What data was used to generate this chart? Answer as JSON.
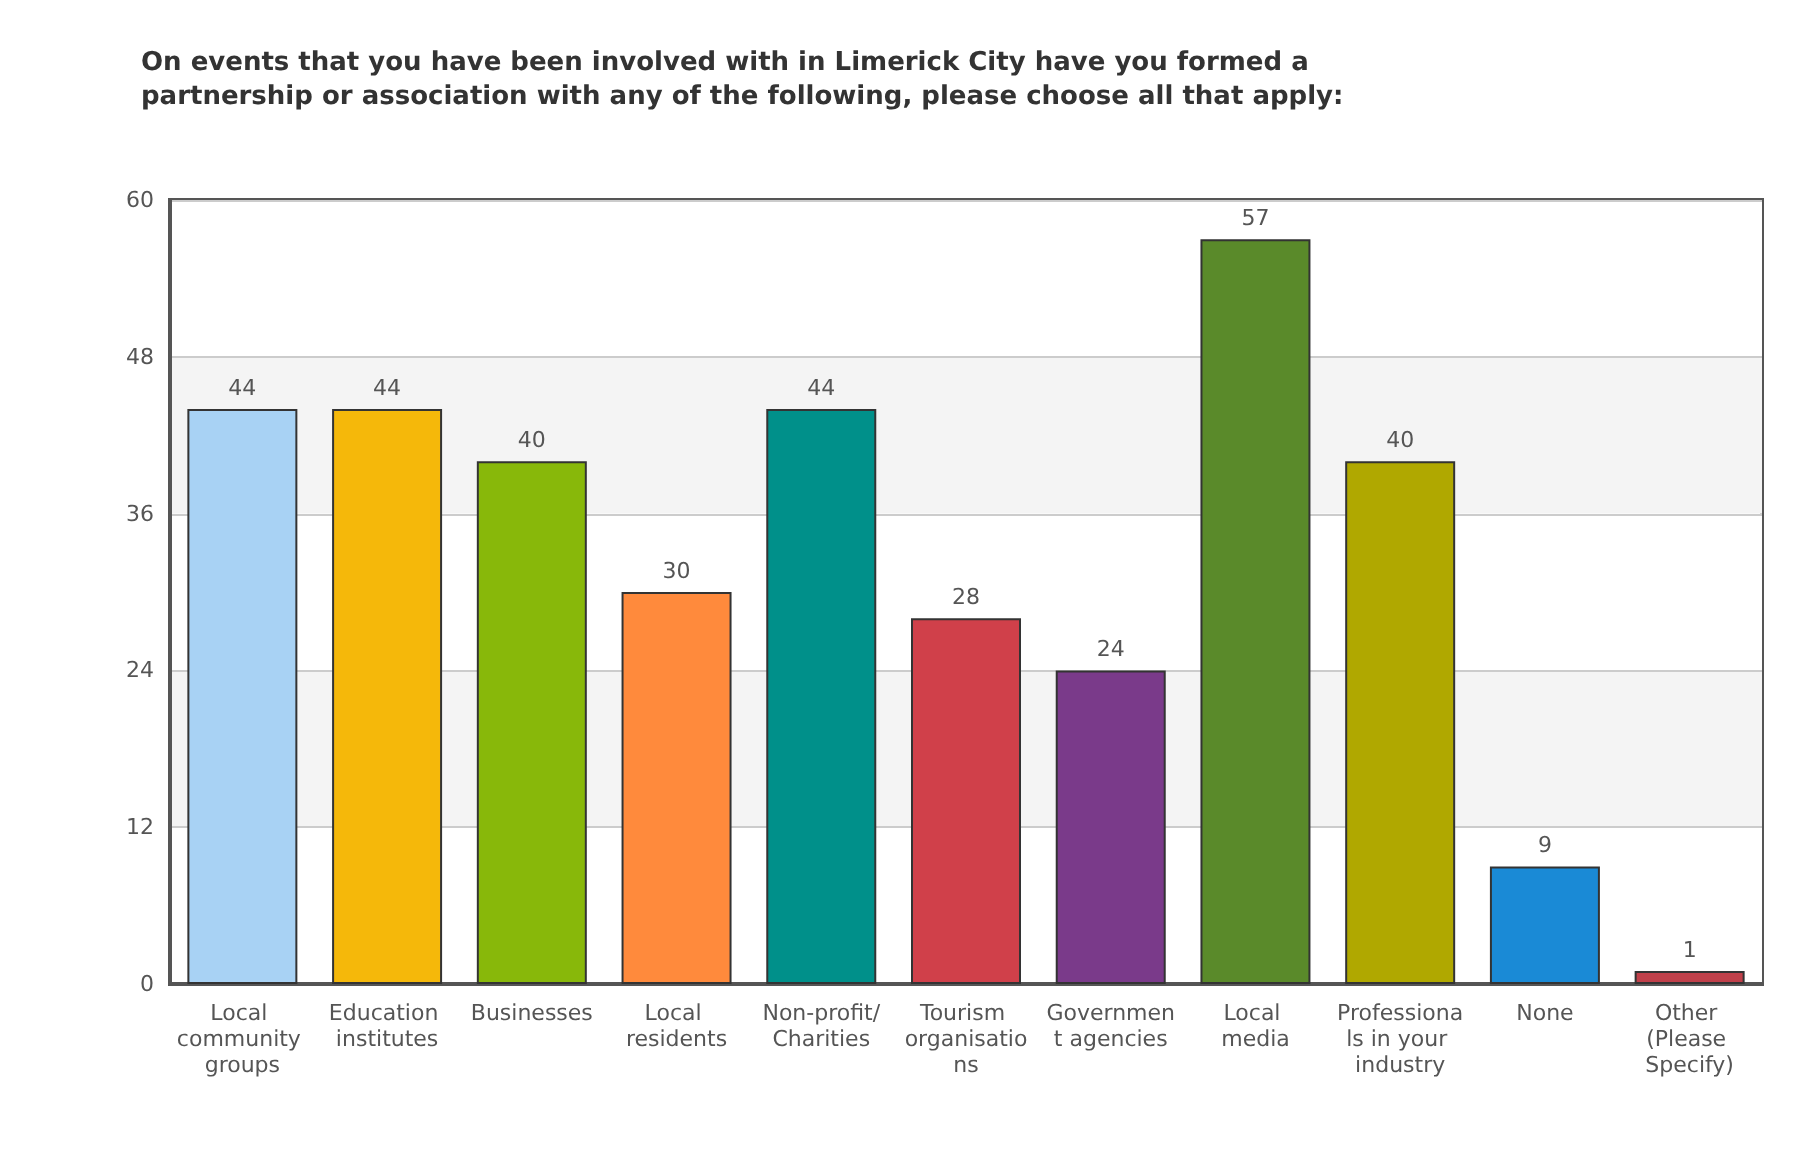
{
  "chart_data": {
    "type": "bar",
    "title": "On events that you have been involved with in Limerick City have you formed a partnership or association with any of the following, please choose all that apply:",
    "categories": [
      "Local community groups",
      "Education institutes",
      "Businesses",
      "Local residents",
      "Non-profit/Charities",
      "Tourism organisations",
      "Government agencies",
      "Local media",
      "Professionals in your industry",
      "None",
      "Other (Please Specify)"
    ],
    "values": [
      44,
      44,
      40,
      30,
      44,
      28,
      24,
      57,
      40,
      9,
      1
    ],
    "colors": [
      "#a8d2f4",
      "#f5b80a",
      "#88b80a",
      "#ff8a3c",
      "#00908a",
      "#d0404a",
      "#7a3a8a",
      "#5a8a2a",
      "#b0a800",
      "#1a8ad6",
      "#c0404a"
    ],
    "ylim": [
      0,
      60
    ],
    "yticks": [
      0,
      12,
      24,
      36,
      48,
      60
    ],
    "grid": "y",
    "data_labels": true
  }
}
